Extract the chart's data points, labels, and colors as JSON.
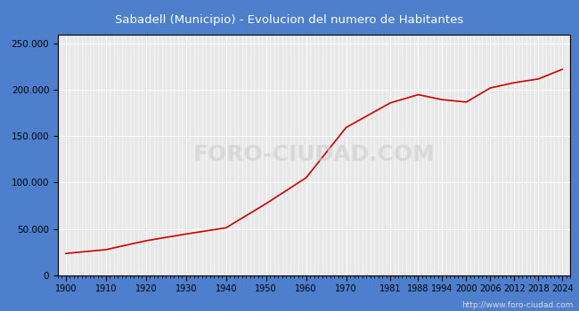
{
  "title": "Sabadell (Municipio) - Evolucion del numero de Habitantes",
  "title_bg_color": "#4D7FCC",
  "title_text_color": "#ffffff",
  "plot_bg_color": "#e8e8e8",
  "line_color": "#cc0000",
  "fill_color": "#cc0000",
  "fill_alpha": 0.0,
  "watermark": "FORO-CIUDAD.COM",
  "url": "http://www.foro-ciudad.com",
  "years": [
    1900,
    1910,
    1920,
    1930,
    1940,
    1950,
    1960,
    1970,
    1981,
    1988,
    1994,
    2000,
    2006,
    2012,
    2018,
    2024
  ],
  "population": [
    23481,
    27613,
    37187,
    44447,
    51186,
    77258,
    105182,
    159408,
    185859,
    194801,
    189404,
    186803,
    201999,
    207721,
    211714,
    222132
  ],
  "yticks": [
    0,
    50000,
    100000,
    150000,
    200000,
    250000
  ],
  "ylim": [
    0,
    260000
  ],
  "xticks": [
    1900,
    1910,
    1920,
    1930,
    1940,
    1950,
    1960,
    1970,
    1981,
    1988,
    1994,
    2000,
    2006,
    2012,
    2018,
    2024
  ],
  "xlim": [
    1898,
    2026
  ],
  "grid_color": "#ffffff",
  "tick_color": "#000000",
  "spine_color": "#000000"
}
